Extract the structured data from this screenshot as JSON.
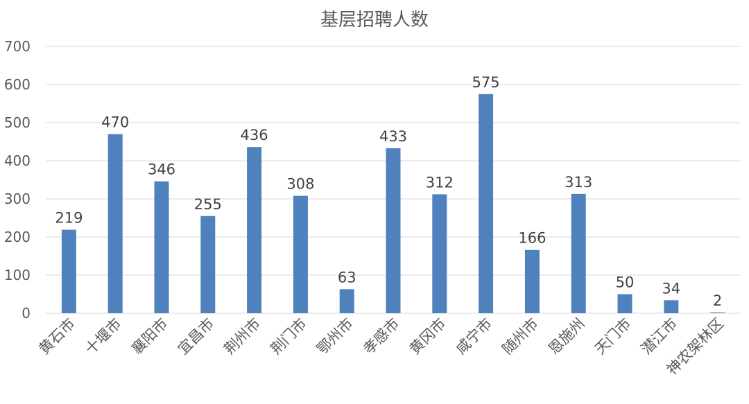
{
  "chart_data": {
    "type": "bar",
    "title": "基层招聘人数",
    "categories": [
      "黄石市",
      "十堰市",
      "襄阳市",
      "宜昌市",
      "荆州市",
      "荆门市",
      "鄂州市",
      "孝感市",
      "黄冈市",
      "咸宁市",
      "随州市",
      "恩施州",
      "天门市",
      "潜江市",
      "神农架林区"
    ],
    "series": [
      {
        "values": [
          219,
          470,
          346,
          255,
          436,
          308,
          63,
          433,
          312,
          575,
          166,
          313,
          50,
          34,
          2
        ]
      }
    ],
    "xlabel": "",
    "ylabel": "",
    "ylim": [
      0,
      700
    ],
    "yticks": [
      0,
      100,
      200,
      300,
      400,
      500,
      600,
      700
    ],
    "grid": true,
    "data_labels": true,
    "legend": "none",
    "bar_color": "#4f81bd"
  }
}
